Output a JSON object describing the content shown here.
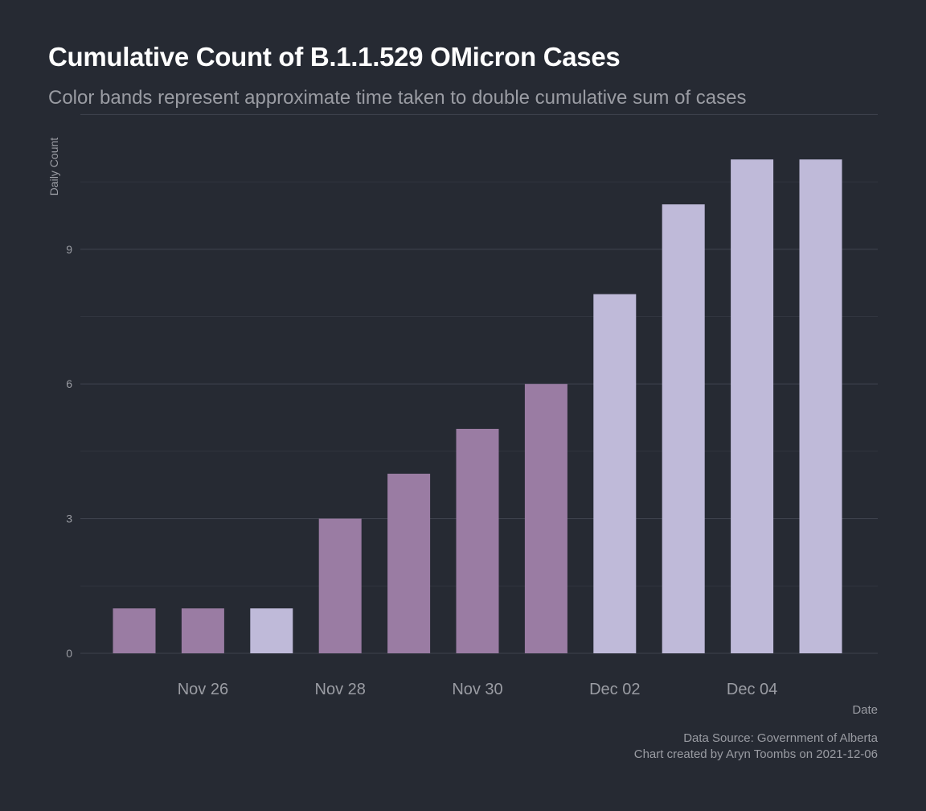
{
  "colors": {
    "background": "#262a33",
    "grid_major": "#3d414c",
    "grid_minor": "#31353f",
    "title": "#ffffff",
    "text": "#9a9ca3",
    "band_1": "#9a7ca3",
    "band_2": "#bfbad9"
  },
  "chart_data": {
    "type": "bar",
    "title": "Cumulative Count of B.1.1.529 OMicron Cases",
    "subtitle": "Color bands represent approximate time taken to double cumulative sum of cases",
    "xlabel": "Date",
    "ylabel": "Daily Count",
    "categories": [
      "2021-11-25",
      "2021-11-26",
      "2021-11-27",
      "2021-11-28",
      "2021-11-29",
      "2021-11-30",
      "2021-12-01",
      "2021-12-02",
      "2021-12-03",
      "2021-12-04",
      "2021-12-05"
    ],
    "values": [
      1,
      1,
      1,
      3,
      4,
      5,
      6,
      8,
      10,
      11,
      11
    ],
    "bands": [
      1,
      1,
      2,
      1,
      1,
      1,
      1,
      2,
      2,
      2,
      2
    ],
    "ylim": [
      0,
      11
    ],
    "y_ticks": [
      0,
      3,
      6,
      9
    ],
    "y_tick_labels": [
      "0",
      "3",
      "6",
      "9"
    ],
    "x_ticks": [
      "2021-11-26",
      "2021-11-28",
      "2021-11-30",
      "2021-12-02",
      "2021-12-04"
    ],
    "x_tick_labels": [
      "Nov 26",
      "Nov 28",
      "Nov 30",
      "Dec 02",
      "Dec 04"
    ],
    "grid": true,
    "legend": "none"
  },
  "caption": {
    "line1": "Data Source: Government of Alberta",
    "line2": "Chart created by Aryn Toombs on 2021-12-06"
  }
}
